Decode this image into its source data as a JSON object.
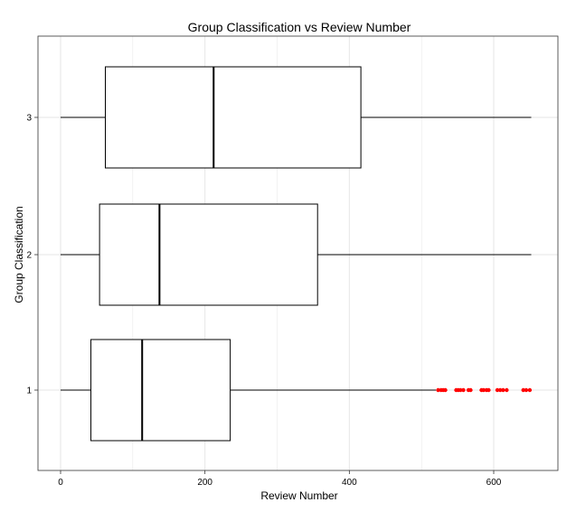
{
  "chart_data": {
    "type": "boxplot",
    "orientation": "horizontal",
    "title": "Group Classification vs Review Number",
    "xlabel": "Review Number",
    "ylabel": "Group Classification",
    "xlim": [
      -30,
      690
    ],
    "xticks": [
      0,
      200,
      400,
      600
    ],
    "categories": [
      "1",
      "2",
      "3"
    ],
    "grid": true,
    "colors": {
      "box": "#000000",
      "outlier": "#ff0000",
      "grid": "#e6e6e6",
      "panel_border": "#333333"
    },
    "boxes": [
      {
        "group": "1",
        "whisker_low": 0,
        "q1": 42,
        "median": 113,
        "q3": 235,
        "whisker_high": 520,
        "outliers": [
          523,
          527,
          530,
          533,
          548,
          551,
          554,
          558,
          565,
          568,
          583,
          586,
          590,
          593,
          605,
          609,
          613,
          618,
          641,
          645,
          650
        ]
      },
      {
        "group": "2",
        "whisker_low": 0,
        "q1": 54,
        "median": 137,
        "q3": 356,
        "whisker_high": 652,
        "outliers": []
      },
      {
        "group": "3",
        "whisker_low": 0,
        "q1": 62,
        "median": 212,
        "q3": 416,
        "whisker_high": 652,
        "outliers": []
      }
    ]
  }
}
